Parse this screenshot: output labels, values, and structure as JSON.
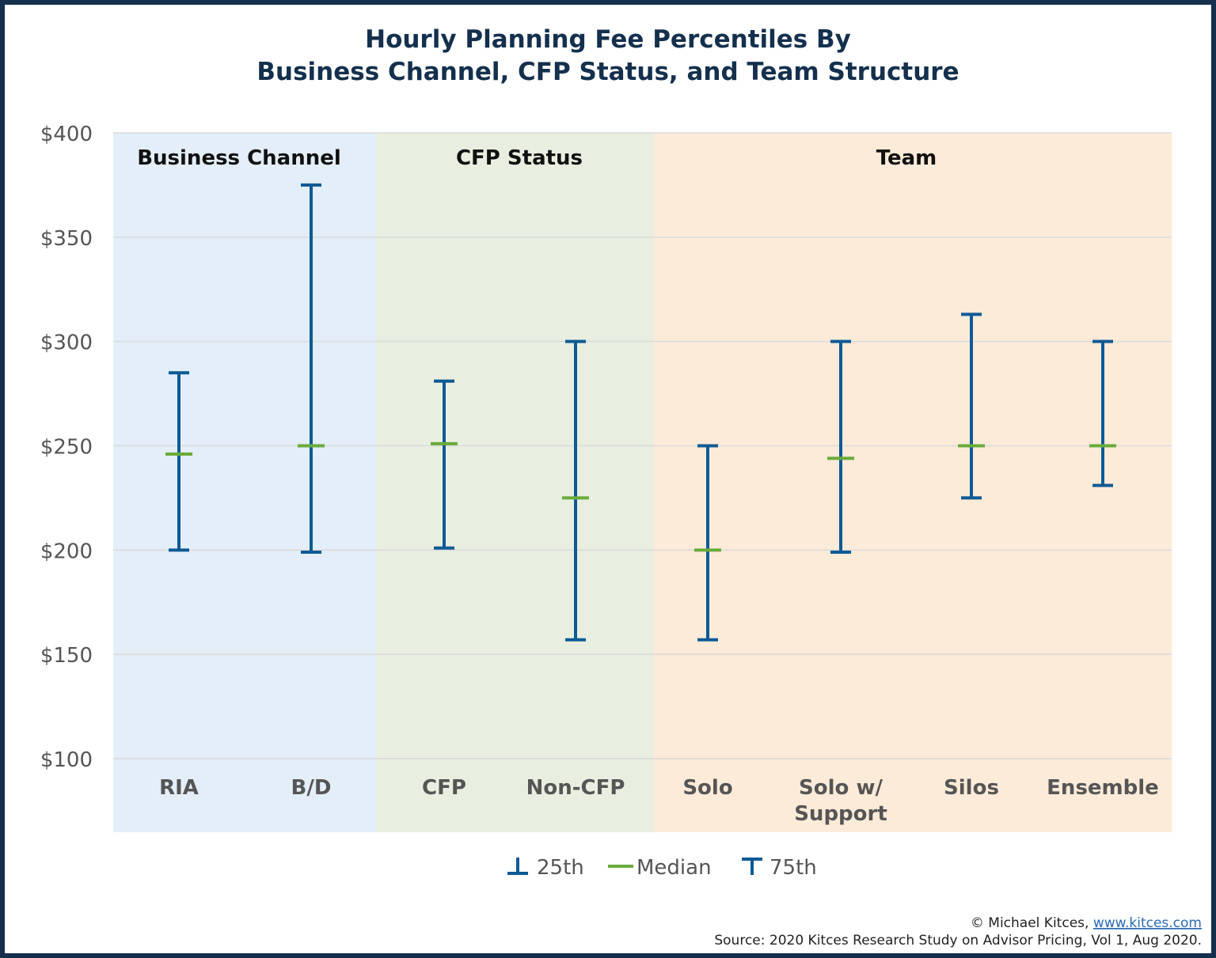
{
  "chart_data": {
    "type": "error-bar",
    "title_lines": [
      "Hourly Planning Fee Percentiles By",
      "Business Channel, CFP Status, and Team Structure"
    ],
    "xlabel": "",
    "ylabel": "",
    "ylim": [
      100,
      400
    ],
    "yticks": [
      100,
      150,
      200,
      250,
      300,
      350,
      400
    ],
    "ytick_labels": [
      "$100",
      "$150",
      "$200",
      "$250",
      "$300",
      "$350",
      "$400"
    ],
    "grid": true,
    "groups": [
      {
        "label": "Business Channel",
        "color": "#e3eef8",
        "categories": [
          "RIA",
          "B/D"
        ]
      },
      {
        "label": "CFP Status",
        "color": "#e9efe0",
        "categories": [
          "CFP",
          "Non-CFP"
        ]
      },
      {
        "label": "Team",
        "color": "#fdebd9",
        "categories": [
          "Solo",
          "Solo w/ Support",
          "Silos",
          "Ensemble"
        ]
      }
    ],
    "categories": [
      "RIA",
      "B/D",
      "CFP",
      "Non-CFP",
      "Solo",
      "Solo w/ Support",
      "Silos",
      "Ensemble"
    ],
    "category_label_lines": [
      [
        "RIA"
      ],
      [
        "B/D"
      ],
      [
        "CFP"
      ],
      [
        "Non-CFP"
      ],
      [
        "Solo"
      ],
      [
        "Solo w/",
        "Support"
      ],
      [
        "Silos"
      ],
      [
        "Ensemble"
      ]
    ],
    "series": [
      {
        "name": "25th",
        "values": [
          200,
          199,
          201,
          157,
          157,
          199,
          225,
          231
        ]
      },
      {
        "name": "Median",
        "values": [
          246,
          250,
          251,
          225,
          200,
          244,
          250,
          250
        ]
      },
      {
        "name": "75th",
        "values": [
          285,
          375,
          281,
          300,
          250,
          300,
          313,
          300
        ]
      }
    ],
    "legend": {
      "position": "bottom",
      "items": [
        "25th",
        "Median",
        "75th"
      ]
    },
    "colors": {
      "range": "#0d5a95",
      "median": "#6aab3c",
      "title": "#14304d",
      "grid": "#d9d9d9",
      "text": "#555555"
    }
  },
  "footer": {
    "copyright": "© Michael Kitces, ",
    "link": "www.kitces.com",
    "source": "Source: 2020 Kitces Research Study on Advisor Pricing, Vol 1, Aug 2020."
  }
}
